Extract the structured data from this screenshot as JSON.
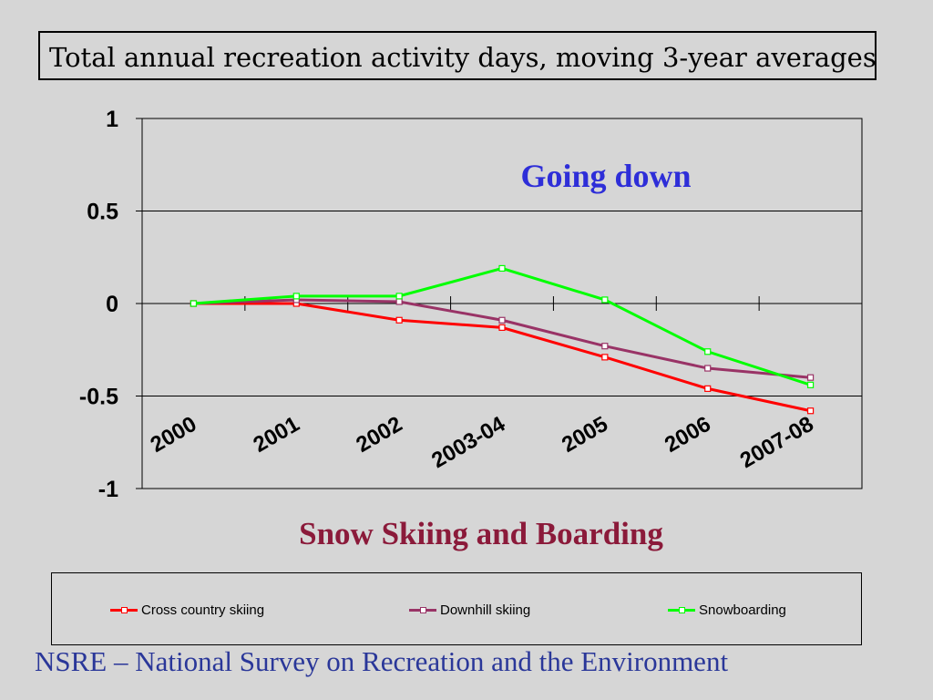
{
  "slide": {
    "title": "Total annual recreation activity days, moving 3-year averages",
    "footer": "NSRE – National Survey on Recreation and the Environment",
    "background": "#d6d6d6"
  },
  "chart_data": {
    "type": "line",
    "categories": [
      "2000",
      "2001",
      "2002",
      "2003-04",
      "2005",
      "2006",
      "2007-08"
    ],
    "ylim": [
      -1,
      1
    ],
    "yticks": [
      1,
      0.5,
      0,
      -0.5,
      -1
    ],
    "ytick_labels": [
      "1",
      "0.5",
      "0",
      "-0.5",
      "-1"
    ],
    "grid": true,
    "legend_position": "bottom",
    "annotation": "Going down",
    "annotation_color": "#2e2ed8",
    "subtitle": "Snow Skiing and Boarding",
    "subtitle_color": "#8b1a3a",
    "series": [
      {
        "name": "Cross country skiing",
        "color": "#ff0000",
        "values": [
          0,
          0,
          -0.09,
          -0.13,
          -0.29,
          -0.46,
          -0.58
        ]
      },
      {
        "name": "Downhill skiing",
        "color": "#993366",
        "values": [
          0,
          0.02,
          0.01,
          -0.09,
          -0.23,
          -0.35,
          -0.4
        ]
      },
      {
        "name": "Snowboarding",
        "color": "#00ff00",
        "values": [
          0,
          0.04,
          0.04,
          0.19,
          0.02,
          -0.26,
          -0.44
        ]
      }
    ]
  }
}
